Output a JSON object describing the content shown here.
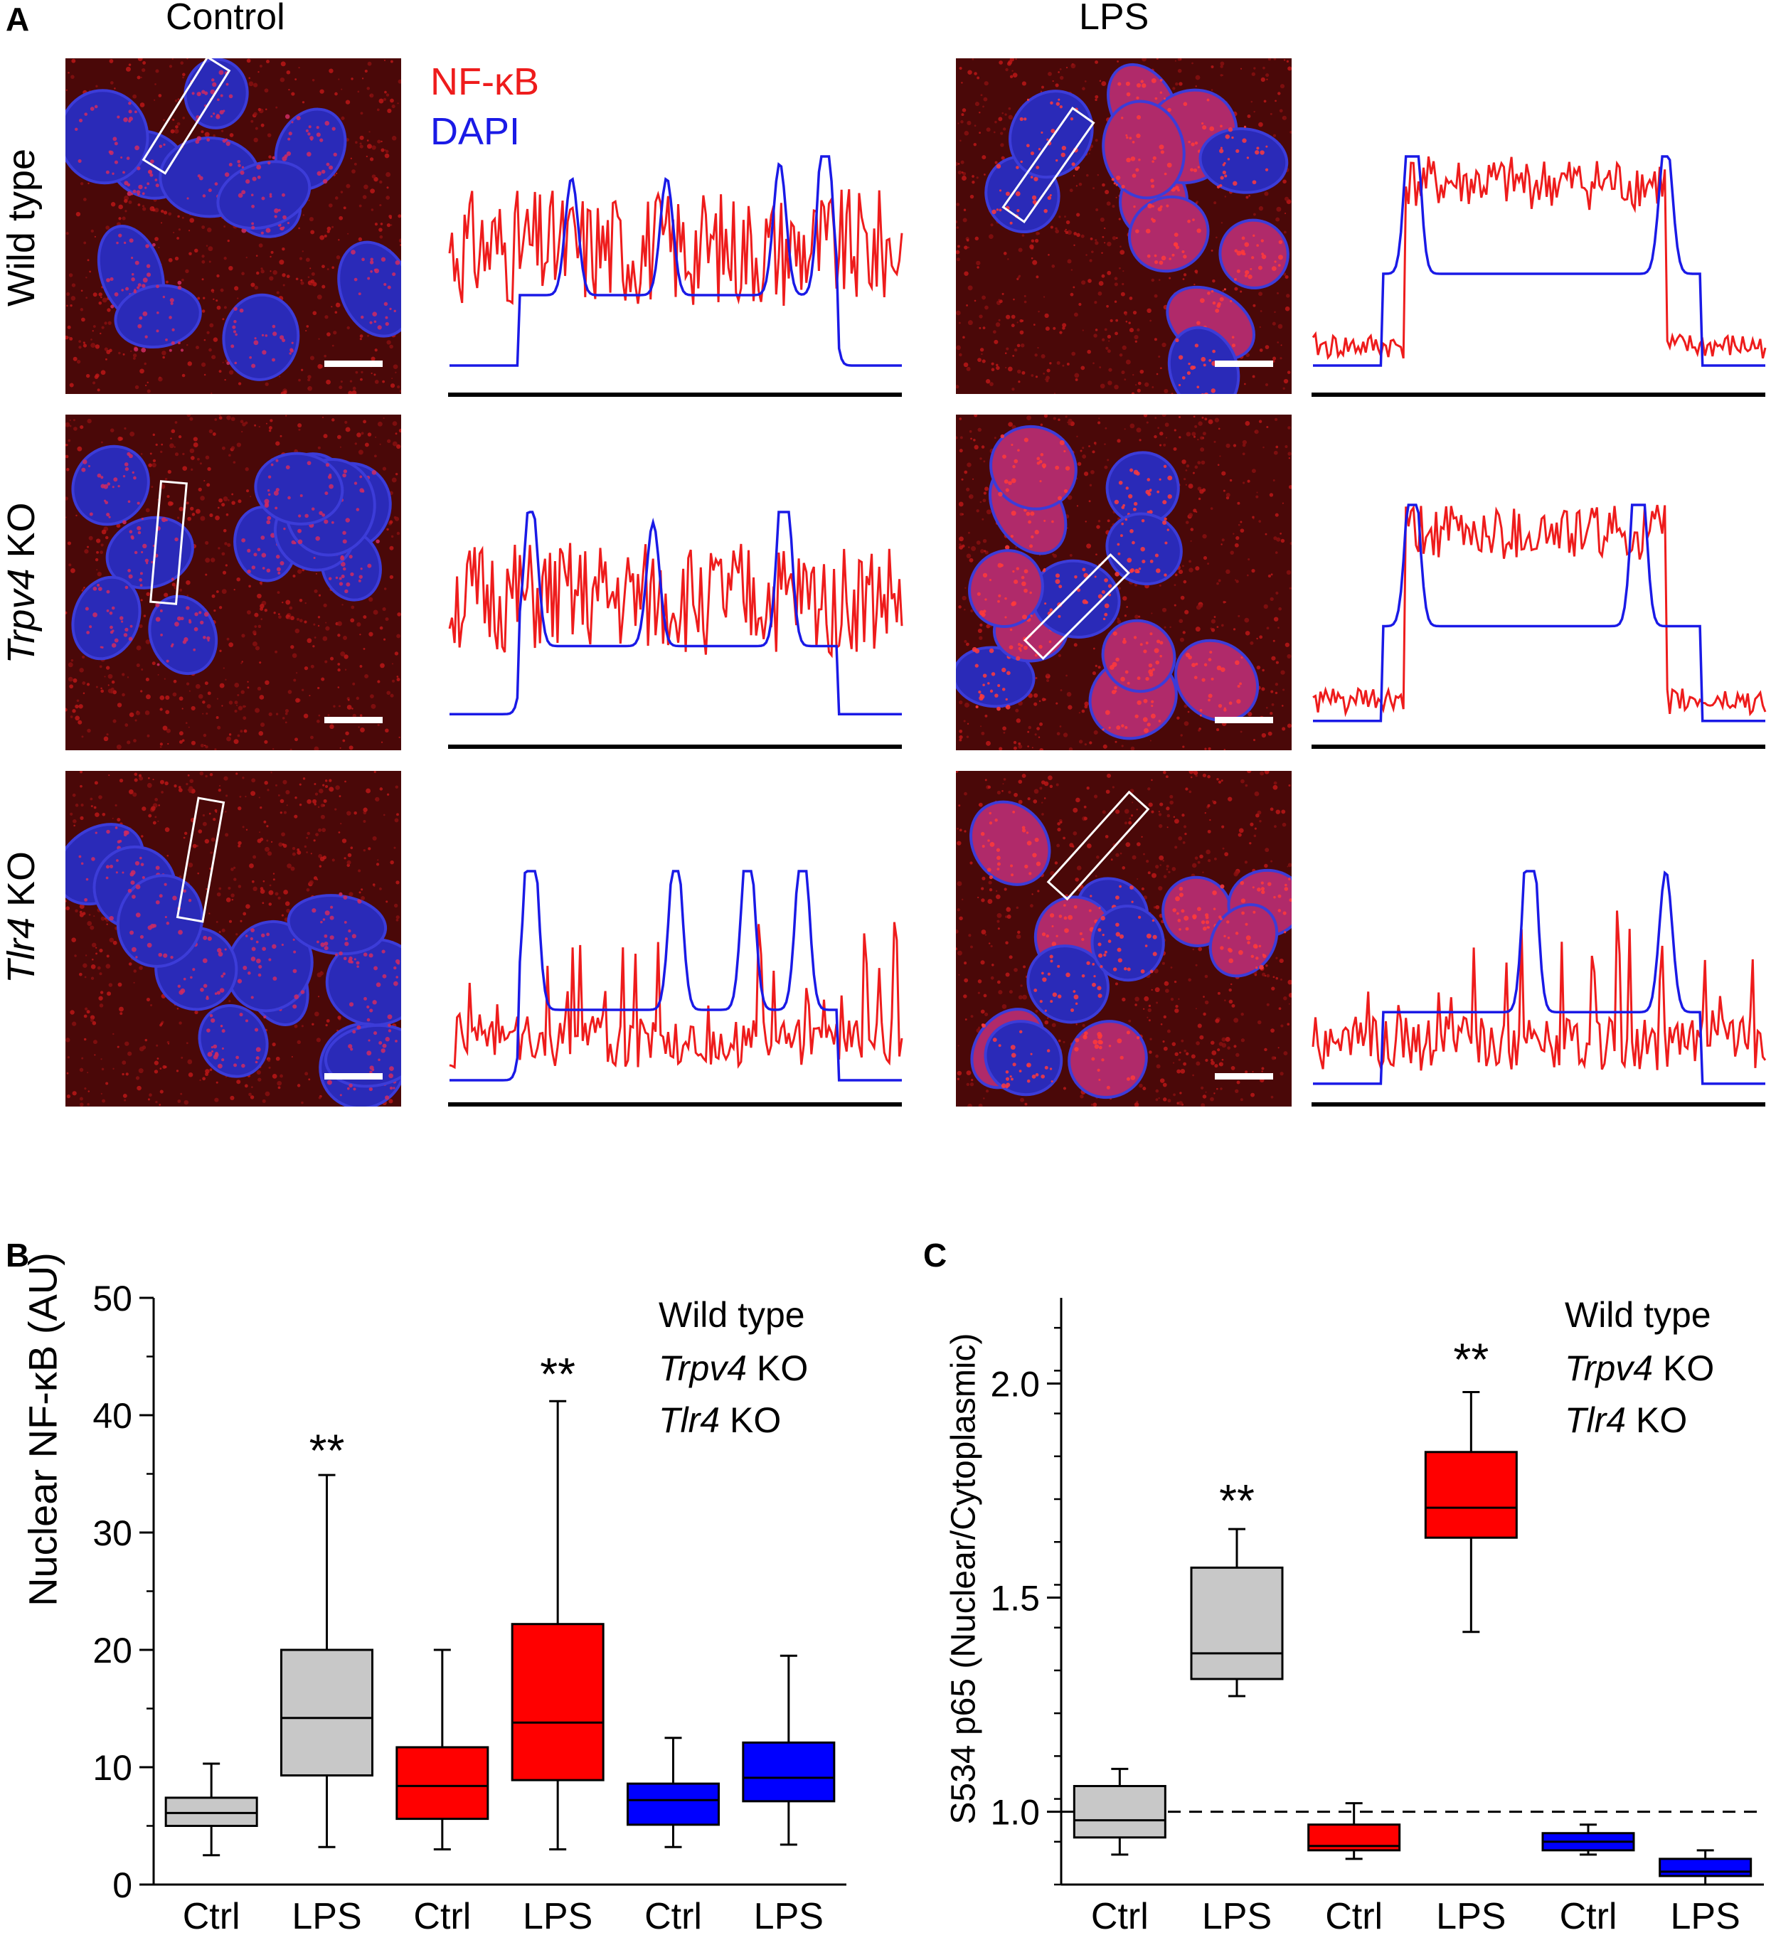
{
  "panelA": {
    "letter": "A",
    "col_control": "Control",
    "col_lps": "LPS",
    "legend_nfkb": "NF-κB",
    "legend_dapi": "DAPI",
    "rows": [
      {
        "label_italic": "",
        "label_rest": "Wild type"
      },
      {
        "label_italic": "Trpv4",
        "label_rest": " KO"
      },
      {
        "label_italic": "Tlr4",
        "label_rest": " KO"
      }
    ],
    "colors": {
      "nfkb": "#ee1c1c",
      "dapi": "#1a1ae6",
      "box": "#ffffff"
    }
  },
  "panelB": {
    "letter": "B",
    "legend": [
      {
        "italic": "",
        "rest": "Wild type",
        "color": "#a6a6a6"
      },
      {
        "italic": "Trpv4",
        "rest": " KO",
        "color": "#ff0000"
      },
      {
        "italic": "Tlr4",
        "rest": " KO",
        "color": "#0000ff"
      }
    ]
  },
  "panelC": {
    "letter": "C",
    "legend": [
      {
        "italic": "",
        "rest": "Wild type",
        "color": "#a6a6a6"
      },
      {
        "italic": "Trpv4",
        "rest": " KO",
        "color": "#ff0000"
      },
      {
        "italic": "Tlr4",
        "rest": " KO",
        "color": "#0000ff"
      }
    ]
  },
  "chart_data": [
    {
      "type": "box",
      "panel": "B",
      "ylabel": "Nuclear NF-κB (AU)",
      "ylim": [
        0,
        50
      ],
      "yticks": [
        0,
        10,
        20,
        30,
        40,
        50
      ],
      "categories": [
        "Ctrl",
        "LPS",
        "Ctrl",
        "LPS",
        "Ctrl",
        "LPS"
      ],
      "colors": [
        "#c8c8c8",
        "#c8c8c8",
        "#ff0000",
        "#ff0000",
        "#0000ff",
        "#0000ff"
      ],
      "boxes": [
        {
          "min": 2.5,
          "q1": 5.0,
          "median": 6.1,
          "q3": 7.4,
          "max": 10.3
        },
        {
          "min": 3.2,
          "q1": 9.3,
          "median": 14.2,
          "q3": 20.0,
          "max": 34.9
        },
        {
          "min": 3.0,
          "q1": 5.6,
          "median": 8.4,
          "q3": 11.7,
          "max": 20.0
        },
        {
          "min": 3.0,
          "q1": 8.9,
          "median": 13.8,
          "q3": 22.2,
          "max": 41.2
        },
        {
          "min": 3.2,
          "q1": 5.1,
          "median": 7.2,
          "q3": 8.6,
          "max": 12.5
        },
        {
          "min": 3.4,
          "q1": 7.1,
          "median": 9.1,
          "q3": 12.1,
          "max": 19.5
        }
      ],
      "annotations": [
        {
          "category_index": 1,
          "text": "**",
          "y": 37.5
        },
        {
          "category_index": 3,
          "text": "**",
          "y": 44.0
        }
      ]
    },
    {
      "type": "box",
      "panel": "C",
      "ylabel": "S534 p65 (Nuclear/Cytoplasmic)",
      "ylim": [
        0.83,
        2.2
      ],
      "yticks": [
        1.0,
        1.5,
        2.0
      ],
      "reference_line": 1.0,
      "categories": [
        "Ctrl",
        "LPS",
        "Ctrl",
        "LPS",
        "Ctrl",
        "LPS"
      ],
      "colors": [
        "#c8c8c8",
        "#c8c8c8",
        "#ff0000",
        "#ff0000",
        "#0000ff",
        "#0000ff"
      ],
      "boxes": [
        {
          "min": 0.9,
          "q1": 0.94,
          "median": 0.98,
          "q3": 1.06,
          "max": 1.1
        },
        {
          "min": 1.27,
          "q1": 1.31,
          "median": 1.37,
          "q3": 1.57,
          "max": 1.66
        },
        {
          "min": 0.89,
          "q1": 0.91,
          "median": 0.92,
          "q3": 0.97,
          "max": 1.02
        },
        {
          "min": 1.42,
          "q1": 1.64,
          "median": 1.71,
          "q3": 1.84,
          "max": 1.98
        },
        {
          "min": 0.9,
          "q1": 0.91,
          "median": 0.93,
          "q3": 0.95,
          "max": 0.97
        },
        {
          "min": 0.83,
          "q1": 0.85,
          "median": 0.86,
          "q3": 0.89,
          "max": 0.91
        }
      ],
      "annotations": [
        {
          "category_index": 1,
          "text": "**",
          "y": 1.74
        },
        {
          "category_index": 3,
          "text": "**",
          "y": 2.07
        }
      ]
    }
  ]
}
